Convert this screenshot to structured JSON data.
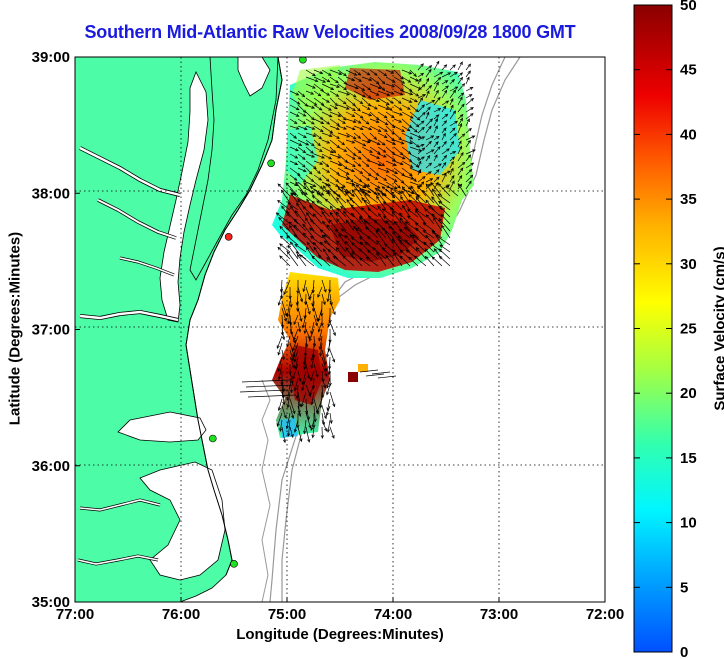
{
  "title": "Southern Mid-Atlantic Raw Velocities 2008/09/28 1800 GMT",
  "x_axis": {
    "label": "Longitude (Degrees:Minutes)",
    "ticks": [
      "77:00",
      "76:00",
      "75:00",
      "74:00",
      "73:00",
      "72:00"
    ],
    "values": [
      -77,
      -76,
      -75,
      -74,
      -73,
      -72
    ]
  },
  "y_axis": {
    "label": "Latitude (Degrees:Minutes)",
    "ticks": [
      "39:00",
      "38:00",
      "37:00",
      "36:00",
      "35:00"
    ],
    "values": [
      39,
      38,
      37,
      36,
      35
    ]
  },
  "colorbar": {
    "label": "Surface Velocity (cm/s)",
    "ticks": [
      "50",
      "45",
      "40",
      "35",
      "30",
      "25",
      "20",
      "15",
      "10",
      "5",
      "0"
    ],
    "range": [
      0,
      50
    ],
    "colors": [
      "#0000ff",
      "#00a0ff",
      "#00ffff",
      "#40ffa0",
      "#a0ff40",
      "#ffff00",
      "#ffa000",
      "#ff4000",
      "#e00000",
      "#900000"
    ]
  },
  "map": {
    "land_color": "#4dfca7",
    "ocean_color": "#ffffff",
    "grid": true,
    "stations": [
      {
        "lon": -74.85,
        "lat": 38.98,
        "status": "green"
      },
      {
        "lon": -75.15,
        "lat": 38.22,
        "status": "green"
      },
      {
        "lon": -75.55,
        "lat": 37.68,
        "status": "red"
      },
      {
        "lon": -75.7,
        "lat": 36.2,
        "status": "green"
      },
      {
        "lon": -75.5,
        "lat": 35.28,
        "status": "green"
      }
    ]
  }
}
